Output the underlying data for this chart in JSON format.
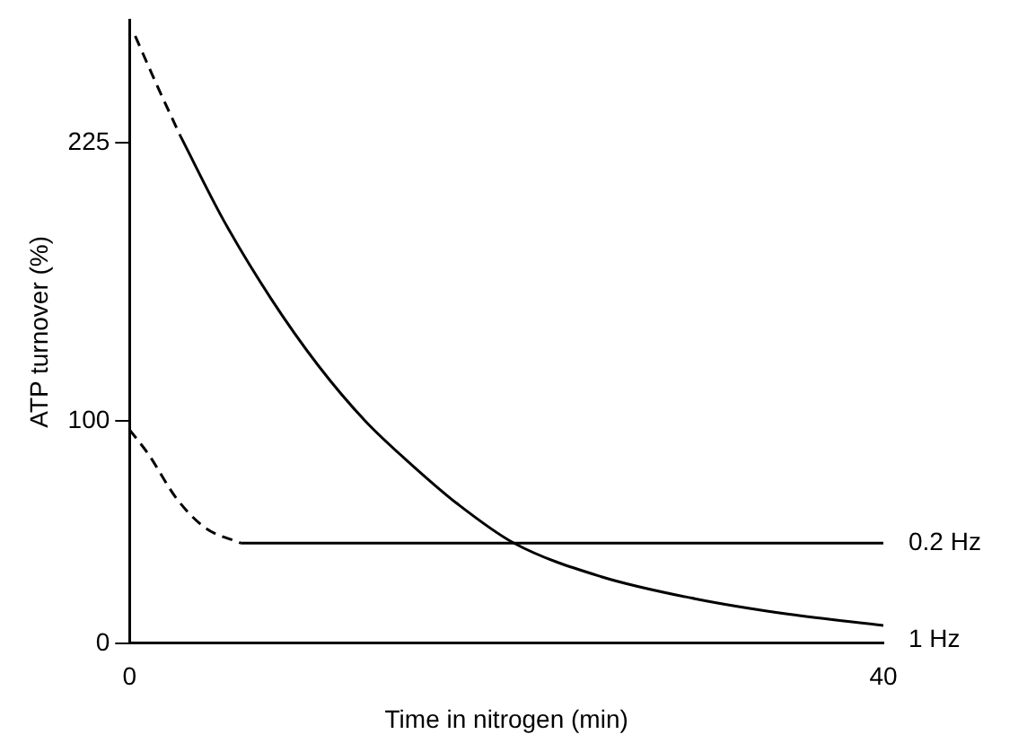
{
  "chart_data": {
    "type": "line",
    "xlabel": "Time in nitrogen (min)",
    "ylabel": "ATP turnover (%)",
    "xlim": [
      0,
      40
    ],
    "xticks": [
      0,
      40
    ],
    "ylim": [
      0,
      280
    ],
    "yticks": [
      0,
      100,
      225
    ],
    "grid": false,
    "legend": false,
    "marker": "none",
    "series": [
      {
        "color": "#000000",
        "line_style": "dashed",
        "x": [
          0.3,
          1.5,
          2.7
        ],
        "values": [
          273,
          250,
          228
        ]
      },
      {
        "name": "1 Hz",
        "color": "#000000",
        "line_style": "solid",
        "x": [
          2.7,
          5,
          7.5,
          10,
          12.5,
          15,
          17.5,
          20.4,
          25,
          30,
          35,
          40
        ],
        "values": [
          228,
          190,
          155,
          125,
          100,
          80,
          62,
          45,
          30,
          20,
          13,
          8
        ]
      },
      {
        "color": "#000000",
        "line_style": "dashed",
        "x": [
          0,
          1,
          2.5,
          4,
          5.9
        ],
        "values": [
          96,
          85,
          65,
          52,
          45
        ]
      },
      {
        "name": "0.2 Hz",
        "color": "#000000",
        "line_style": "solid",
        "x": [
          5.9,
          40
        ],
        "values": [
          45,
          45
        ]
      }
    ]
  }
}
